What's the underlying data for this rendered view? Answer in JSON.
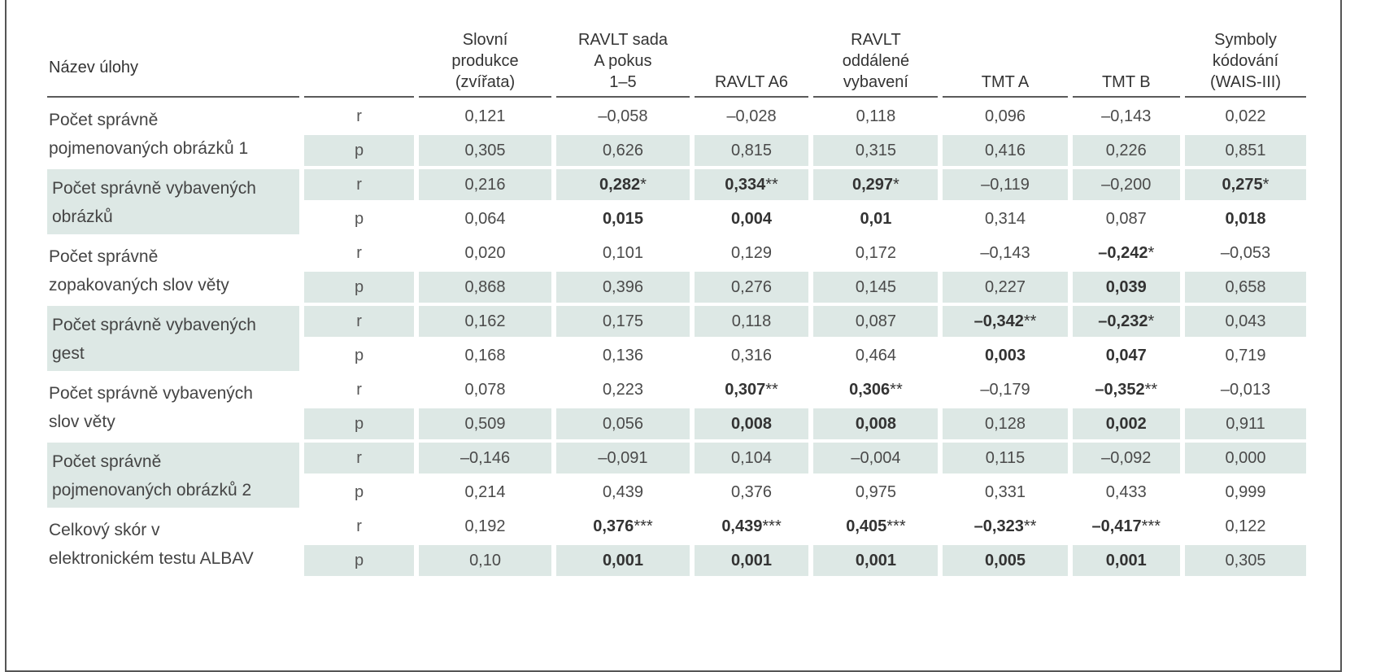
{
  "table": {
    "task_header": "Název úlohy",
    "columns": [
      {
        "l1": "Slovní",
        "l2": "produkce",
        "l3": "(zvířata)",
        "l4": ""
      },
      {
        "l1": "RAVLT sada",
        "l2": "A pokus",
        "l3": "1–5",
        "l4": ""
      },
      {
        "l1": "",
        "l2": "",
        "l3": "RAVLT A6",
        "l4": ""
      },
      {
        "l1": "RAVLT",
        "l2": "oddálené",
        "l3": "vybavení",
        "l4": ""
      },
      {
        "l1": "",
        "l2": "",
        "l3": "TMT A",
        "l4": ""
      },
      {
        "l1": "",
        "l2": "",
        "l3": "TMT B",
        "l4": ""
      },
      {
        "l1": "Symboly",
        "l2": "kódování",
        "l3": "(WAIS-III)",
        "l4": ""
      }
    ],
    "rows": [
      {
        "task1": "Počet správně",
        "task2": "pojmenovaných obrázků 1",
        "shaded": false,
        "r": [
          {
            "v": "0,121",
            "s": ""
          },
          {
            "v": "–0,058",
            "s": ""
          },
          {
            "v": "–0,028",
            "s": ""
          },
          {
            "v": "0,118",
            "s": ""
          },
          {
            "v": "0,096",
            "s": ""
          },
          {
            "v": "–0,143",
            "s": ""
          },
          {
            "v": "0,022",
            "s": ""
          }
        ],
        "p": [
          {
            "v": "0,305"
          },
          {
            "v": "0,626"
          },
          {
            "v": "0,815"
          },
          {
            "v": "0,315"
          },
          {
            "v": "0,416"
          },
          {
            "v": "0,226"
          },
          {
            "v": "0,851"
          }
        ],
        "bold": [
          false,
          false,
          false,
          false,
          false,
          false,
          false
        ]
      },
      {
        "task1": "Počet správně vybavených",
        "task2": "obrázků",
        "shaded": true,
        "r": [
          {
            "v": "0,216",
            "s": ""
          },
          {
            "v": "0,282",
            "s": "*"
          },
          {
            "v": "0,334",
            "s": "**"
          },
          {
            "v": "0,297",
            "s": "*"
          },
          {
            "v": "–0,119",
            "s": ""
          },
          {
            "v": "–0,200",
            "s": ""
          },
          {
            "v": "0,275",
            "s": "*"
          }
        ],
        "p": [
          {
            "v": "0,064"
          },
          {
            "v": "0,015"
          },
          {
            "v": "0,004"
          },
          {
            "v": "0,01"
          },
          {
            "v": "0,314"
          },
          {
            "v": "0,087"
          },
          {
            "v": "0,018"
          }
        ],
        "bold": [
          false,
          true,
          true,
          true,
          false,
          false,
          true
        ]
      },
      {
        "task1": "Počet správně",
        "task2": "zopakovaných slov věty",
        "shaded": false,
        "r": [
          {
            "v": "0,020",
            "s": ""
          },
          {
            "v": "0,101",
            "s": ""
          },
          {
            "v": "0,129",
            "s": ""
          },
          {
            "v": "0,172",
            "s": ""
          },
          {
            "v": "–0,143",
            "s": ""
          },
          {
            "v": "–0,242",
            "s": "*"
          },
          {
            "v": "–0,053",
            "s": ""
          }
        ],
        "p": [
          {
            "v": "0,868"
          },
          {
            "v": "0,396"
          },
          {
            "v": "0,276"
          },
          {
            "v": "0,145"
          },
          {
            "v": "0,227"
          },
          {
            "v": "0,039"
          },
          {
            "v": "0,658"
          }
        ],
        "bold": [
          false,
          false,
          false,
          false,
          false,
          true,
          false
        ]
      },
      {
        "task1": "Počet správně vybavených",
        "task2": "gest",
        "shaded": true,
        "r": [
          {
            "v": "0,162",
            "s": ""
          },
          {
            "v": "0,175",
            "s": ""
          },
          {
            "v": "0,118",
            "s": ""
          },
          {
            "v": "0,087",
            "s": ""
          },
          {
            "v": "–0,342",
            "s": "**"
          },
          {
            "v": "–0,232",
            "s": "*"
          },
          {
            "v": "0,043",
            "s": ""
          }
        ],
        "p": [
          {
            "v": "0,168"
          },
          {
            "v": "0,136"
          },
          {
            "v": "0,316"
          },
          {
            "v": "0,464"
          },
          {
            "v": "0,003"
          },
          {
            "v": "0,047"
          },
          {
            "v": "0,719"
          }
        ],
        "bold": [
          false,
          false,
          false,
          false,
          true,
          true,
          false
        ]
      },
      {
        "task1": "Počet správně vybavených",
        "task2": "slov věty",
        "shaded": false,
        "r": [
          {
            "v": "0,078",
            "s": ""
          },
          {
            "v": "0,223",
            "s": ""
          },
          {
            "v": "0,307",
            "s": "**"
          },
          {
            "v": "0,306",
            "s": "**"
          },
          {
            "v": "–0,179",
            "s": ""
          },
          {
            "v": "–0,352",
            "s": "**"
          },
          {
            "v": "–0,013",
            "s": ""
          }
        ],
        "p": [
          {
            "v": "0,509"
          },
          {
            "v": "0,056"
          },
          {
            "v": "0,008"
          },
          {
            "v": "0,008"
          },
          {
            "v": "0,128"
          },
          {
            "v": "0,002"
          },
          {
            "v": "0,911"
          }
        ],
        "bold": [
          false,
          false,
          true,
          true,
          false,
          true,
          false
        ]
      },
      {
        "task1": "Počet správně",
        "task2": "pojmenovaných obrázků 2",
        "shaded": true,
        "r": [
          {
            "v": "–0,146",
            "s": ""
          },
          {
            "v": "–0,091",
            "s": ""
          },
          {
            "v": "0,104",
            "s": ""
          },
          {
            "v": "–0,004",
            "s": ""
          },
          {
            "v": "0,115",
            "s": ""
          },
          {
            "v": "–0,092",
            "s": ""
          },
          {
            "v": "0,000",
            "s": ""
          }
        ],
        "p": [
          {
            "v": "0,214"
          },
          {
            "v": "0,439"
          },
          {
            "v": "0,376"
          },
          {
            "v": "0,975"
          },
          {
            "v": "0,331"
          },
          {
            "v": "0,433"
          },
          {
            "v": "0,999"
          }
        ],
        "bold": [
          false,
          false,
          false,
          false,
          false,
          false,
          false
        ]
      },
      {
        "task1": "Celkový skór v",
        "task2": "elektronickém testu ALBAV",
        "shaded": false,
        "r": [
          {
            "v": "0,192",
            "s": ""
          },
          {
            "v": "0,376",
            "s": "***"
          },
          {
            "v": "0,439",
            "s": "***"
          },
          {
            "v": "0,405",
            "s": "***"
          },
          {
            "v": "–0,323",
            "s": "**"
          },
          {
            "v": "–0,417",
            "s": "***"
          },
          {
            "v": "0,122",
            "s": ""
          }
        ],
        "p": [
          {
            "v": "0,10"
          },
          {
            "v": "0,001"
          },
          {
            "v": "0,001"
          },
          {
            "v": "0,001"
          },
          {
            "v": "0,005"
          },
          {
            "v": "0,001"
          },
          {
            "v": "0,305"
          }
        ],
        "bold": [
          false,
          true,
          true,
          true,
          true,
          true,
          false
        ]
      }
    ],
    "stat_r": "r",
    "stat_p": "p",
    "shade_color": "#dde8e5"
  }
}
